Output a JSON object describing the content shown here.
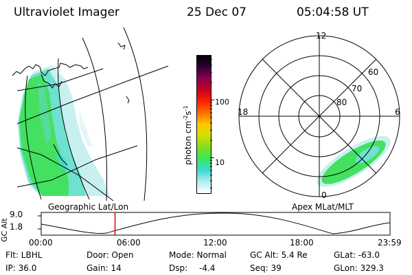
{
  "header": {
    "title": "Ultraviolet Imager",
    "date": "25 Dec 07",
    "time": "05:04:58 UT"
  },
  "left_panel": {
    "label": "Geographic Lat/Lon"
  },
  "right_panel": {
    "label": "Apex MLat/MLT",
    "mlt_labels": [
      "12",
      "18",
      "6",
      "0"
    ],
    "lat_labels": [
      "60",
      "70",
      "80"
    ]
  },
  "colorbar": {
    "unit_label": "photon cm",
    "unit_exp1": "-2",
    "unit_s": "s",
    "unit_exp2": "-1",
    "ticks": [
      "100",
      "10"
    ],
    "tick_values": [
      100,
      10
    ],
    "range": [
      2.5,
      600
    ],
    "scale": "log",
    "colors": [
      "#ffffff",
      "#b4ecec",
      "#3fd8d8",
      "#38e858",
      "#7ee020",
      "#d0e000",
      "#ffc800",
      "#ff7000",
      "#ff2000",
      "#c80020",
      "#8c0050",
      "#320038",
      "#000000"
    ]
  },
  "alt_plot": {
    "axis_label": "GC Alt",
    "y_ticks": [
      "9.0",
      "1.8"
    ],
    "x_ticks": [
      "00:00",
      "06:00",
      "12:00",
      "18:00",
      "23:59"
    ],
    "ylim": [
      1.8,
      9.0
    ],
    "current_time_hours": 5.08,
    "marker_color": "#e00000"
  },
  "info": {
    "flt": "Flt: LBHL",
    "door": "Door: Open",
    "mode": "Mode: Normal",
    "gc_alt": "GC Alt: 5.4 Re",
    "glat": "GLat: -63.0",
    "ip": "IP: 36.0",
    "gain": "Gain: 14",
    "dsp_label": "Dsp:",
    "dsp_value": "-4.4",
    "seq": "Seq: 39",
    "glon": "GLon: 329.3"
  }
}
